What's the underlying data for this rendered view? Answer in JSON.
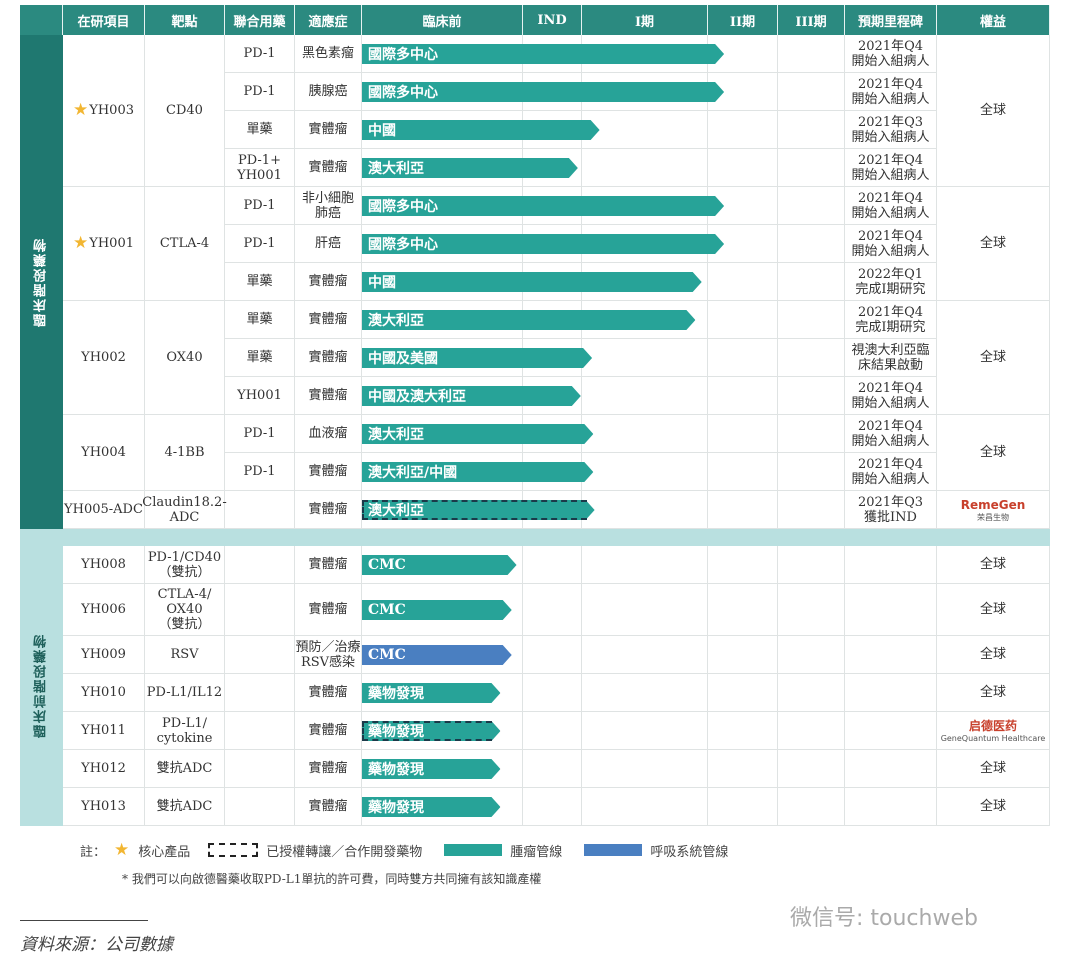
{
  "headers": [
    "在研項目",
    "靶點",
    "聯合用藥",
    "適應症",
    "臨床前",
    "IND",
    "I期",
    "II期",
    "III期",
    "預期里程碑",
    "權益"
  ],
  "colors": {
    "header": "#2b8a80",
    "clinical_band": "#1f7870",
    "preclinical_band": "#b9e0e0",
    "oncology": "#27a398",
    "respiratory": "#4a7fc1",
    "dashed_border": "#1b3a4a",
    "star": "#f2b632"
  },
  "sections": [
    {
      "label": "臨床階段藥物",
      "programs": [
        {
          "name": "YH003",
          "star": true,
          "target": "CD40",
          "rights": "全球",
          "rows": [
            {
              "combo": "PD-1",
              "indication": "黑色素瘤",
              "bar": "國際多中心",
              "progress_stage": 3.23,
              "color": "oncology",
              "dashed": false,
              "milestone": "2021年Q4\n開始入組病人"
            },
            {
              "combo": "PD-1",
              "indication": "胰腺癌",
              "bar": "國際多中心",
              "progress_stage": 3.23,
              "color": "oncology",
              "dashed": false,
              "milestone": "2021年Q4\n開始入組病人"
            },
            {
              "combo": "單藥",
              "indication": "實體瘤",
              "bar": "中國",
              "progress_stage": 2.14,
              "color": "oncology",
              "dashed": false,
              "milestone": "2021年Q3\n開始入組病人"
            },
            {
              "combo": "PD-1+\nYH001",
              "indication": "實體瘤",
              "bar": "澳大利亞",
              "progress_stage": 1.93,
              "color": "oncology",
              "dashed": false,
              "milestone": "2021年Q4\n開始入組病人"
            }
          ]
        },
        {
          "name": "YH001",
          "star": true,
          "target": "CTLA-4",
          "rights": "全球",
          "rows": [
            {
              "combo": "PD-1",
              "indication": "非小細胞\n肺癌",
              "bar": "國際多中心",
              "progress_stage": 3.23,
              "color": "oncology",
              "dashed": false,
              "milestone": "2021年Q4\n開始入組病人"
            },
            {
              "combo": "PD-1",
              "indication": "肝癌",
              "bar": "國際多中心",
              "progress_stage": 3.23,
              "color": "oncology",
              "dashed": false,
              "milestone": "2021年Q4\n開始入組病人"
            },
            {
              "combo": "單藥",
              "indication": "實體瘤",
              "bar": "中國",
              "progress_stage": 2.95,
              "color": "oncology",
              "dashed": false,
              "milestone": "2022年Q1\n完成I期研究"
            }
          ]
        },
        {
          "name": "YH002",
          "star": false,
          "target": "OX40",
          "rights": "全球",
          "rows": [
            {
              "combo": "單藥",
              "indication": "實體瘤",
              "bar": "澳大利亞",
              "progress_stage": 2.9,
              "color": "oncology",
              "dashed": false,
              "milestone": "2021年Q4\n完成I期研究"
            },
            {
              "combo": "單藥",
              "indication": "實體瘤",
              "bar": "中國及美國",
              "progress_stage": 2.08,
              "color": "oncology",
              "dashed": false,
              "milestone": "視澳大利亞臨\n床結果啟動"
            },
            {
              "combo": "YH001",
              "indication": "實體瘤",
              "bar": "中國及澳大利亞",
              "progress_stage": 1.98,
              "color": "oncology",
              "dashed": false,
              "milestone": "2021年Q4\n開始入組病人"
            }
          ]
        },
        {
          "name": "YH004",
          "star": false,
          "target": "4-1BB",
          "rights": "全球",
          "rows": [
            {
              "combo": "PD-1",
              "indication": "血液瘤",
              "bar": "澳大利亞",
              "progress_stage": 2.09,
              "color": "oncology",
              "dashed": false,
              "milestone": "2021年Q4\n開始入組病人"
            },
            {
              "combo": "PD-1",
              "indication": "實體瘤",
              "bar": "澳大利亞/中國",
              "progress_stage": 2.09,
              "color": "oncology",
              "dashed": false,
              "milestone": "2021年Q4\n開始入組病人"
            }
          ]
        },
        {
          "name": "YH005-ADC",
          "star": false,
          "target": "Claudin18.2-\nADC",
          "rights": "",
          "rights_logo": {
            "name": "RemeGen",
            "sub": "荣昌生物"
          },
          "rows": [
            {
              "combo": "",
              "indication": "實體瘤",
              "bar": "澳大利亞",
              "progress_stage": 2.1,
              "color": "oncology",
              "dashed": true,
              "milestone": "2021年Q3\n獲批IND"
            }
          ]
        }
      ]
    },
    {
      "label": "臨床前階段藥物",
      "programs": [
        {
          "name": "YH008",
          "target": "PD-1/CD40\n（雙抗）",
          "rights": "全球",
          "rows": [
            {
              "combo": "",
              "indication": "實體瘤",
              "bar": "CMC",
              "progress_stage": 0.96,
              "color": "oncology",
              "dashed": false,
              "milestone": ""
            }
          ]
        },
        {
          "name": "YH006",
          "target": "CTLA-4/\nOX40\n（雙抗）",
          "rights": "全球",
          "tall": true,
          "rows": [
            {
              "combo": "",
              "indication": "實體瘤",
              "bar": "CMC",
              "progress_stage": 0.93,
              "color": "oncology",
              "dashed": false,
              "milestone": ""
            }
          ]
        },
        {
          "name": "YH009",
          "target": "RSV",
          "rights": "全球",
          "rows": [
            {
              "combo": "",
              "indication": "預防／治療\nRSV感染",
              "bar": "CMC",
              "progress_stage": 0.93,
              "color": "respiratory",
              "dashed": false,
              "milestone": ""
            }
          ]
        },
        {
          "name": "YH010",
          "target": "PD-L1/IL12",
          "rights": "全球",
          "rows": [
            {
              "combo": "",
              "indication": "實體瘤",
              "bar": "藥物發現",
              "progress_stage": 0.86,
              "color": "oncology",
              "dashed": false,
              "milestone": ""
            }
          ]
        },
        {
          "name": "YH011",
          "target": "PD-L1/\ncytokine",
          "rights": "",
          "rights_logo": {
            "name": "启德医药",
            "sub": "GeneQuantum Healthcare",
            "mark": "*"
          },
          "rows": [
            {
              "combo": "",
              "indication": "實體瘤",
              "bar": "藥物發現",
              "progress_stage": 0.86,
              "color": "oncology",
              "dashed": true,
              "milestone": ""
            }
          ]
        },
        {
          "name": "YH012",
          "target": "雙抗ADC",
          "rights": "全球",
          "rows": [
            {
              "combo": "",
              "indication": "實體瘤",
              "bar": "藥物發現",
              "progress_stage": 0.86,
              "color": "oncology",
              "dashed": false,
              "milestone": ""
            }
          ]
        },
        {
          "name": "YH013",
          "target": "雙抗ADC",
          "rights": "全球",
          "rows": [
            {
              "combo": "",
              "indication": "實體瘤",
              "bar": "藥物發現",
              "progress_stage": 0.86,
              "color": "oncology",
              "dashed": false,
              "milestone": ""
            }
          ]
        }
      ]
    }
  ],
  "legend": {
    "prefix": "註：",
    "core": "核心產品",
    "licensed": "已授權轉讓／合作開發藥物",
    "oncology": "腫瘤管線",
    "respiratory": "呼吸系統管線"
  },
  "footnote": "* 我們可以向啟德醫藥收取PD-L1單抗的許可費，同時雙方共同擁有該知識產權",
  "source": "資料來源：公司數據",
  "watermark": "微信号: touchweb"
}
